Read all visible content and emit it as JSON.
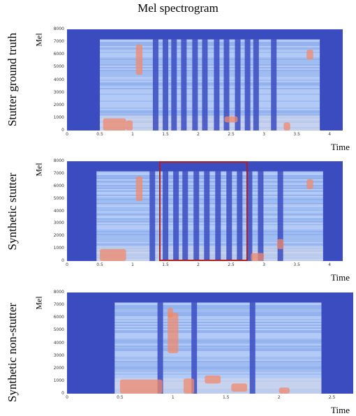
{
  "title": "Mel spectrogram",
  "rows": [
    {
      "label": "Stutter ground truth",
      "ylabel": "Mel",
      "xlabel": "Time",
      "yticks": [
        "0",
        "1000",
        "2000",
        "3000",
        "4000",
        "5000",
        "6000",
        "7000",
        "8000"
      ],
      "xticks": [
        "0",
        "0.5",
        "1",
        "1.5",
        "2",
        "2.5",
        "3",
        "3.5",
        "4"
      ],
      "xmax": 4.2,
      "speech": [
        0.5,
        3.85
      ],
      "gaps": [
        1.35,
        1.5,
        1.63,
        1.78,
        1.95,
        2.1,
        2.28,
        2.43,
        2.6,
        2.75,
        2.88,
        3.15
      ],
      "hot": [
        [
          0.55,
          0.9,
          0,
          0.12
        ],
        [
          1.05,
          1.15,
          0.55,
          0.85
        ],
        [
          0.9,
          1.0,
          0.0,
          0.1
        ],
        [
          2.4,
          2.6,
          0.08,
          0.14
        ],
        [
          3.3,
          3.4,
          0,
          0.08
        ],
        [
          3.65,
          3.75,
          0.7,
          0.8
        ]
      ]
    },
    {
      "label": "Synthetic stutter",
      "ylabel": "Mel",
      "xlabel": "Time",
      "yticks": [
        "0",
        "1000",
        "2000",
        "3000",
        "4000",
        "5000",
        "6000",
        "7000",
        "8000"
      ],
      "xticks": [
        "0",
        "0.5",
        "1",
        "1.5",
        "2",
        "2.5",
        "3",
        "3.5",
        "4"
      ],
      "xmax": 4.2,
      "speech": [
        0.45,
        3.9
      ],
      "gaps": [
        1.3,
        1.5,
        1.66,
        1.8,
        1.97,
        2.13,
        2.3,
        2.47,
        2.63,
        2.78,
        2.95,
        3.25
      ],
      "hot": [
        [
          0.5,
          0.9,
          0,
          0.12
        ],
        [
          1.05,
          1.15,
          0.6,
          0.85
        ],
        [
          2.8,
          3.0,
          0,
          0.08
        ],
        [
          3.2,
          3.3,
          0.12,
          0.22
        ],
        [
          3.65,
          3.75,
          0.72,
          0.82
        ]
      ],
      "highlight": [
        1.4,
        2.75
      ]
    },
    {
      "label": "Synthetic non-stutter",
      "ylabel": "Mel",
      "xlabel": "Time",
      "yticks": [
        "0",
        "1000",
        "2000",
        "3000",
        "4000",
        "5000",
        "6000",
        "7000",
        "8000"
      ],
      "xticks": [
        "0",
        "0.5",
        "1",
        "1.5",
        "2",
        "2.5"
      ],
      "xmax": 2.7,
      "speech": [
        0.45,
        2.4
      ],
      "gaps": [
        0.88,
        1.2,
        1.75
      ],
      "hot": [
        [
          0.5,
          0.9,
          0,
          0.14
        ],
        [
          0.95,
          1.05,
          0.4,
          0.8
        ],
        [
          1.1,
          1.2,
          0,
          0.15
        ],
        [
          1.3,
          1.45,
          0.1,
          0.18
        ],
        [
          1.55,
          1.7,
          0.02,
          0.1
        ],
        [
          2.0,
          2.1,
          0,
          0.06
        ],
        [
          0.95,
          1.0,
          0.75,
          0.85
        ]
      ]
    }
  ]
}
